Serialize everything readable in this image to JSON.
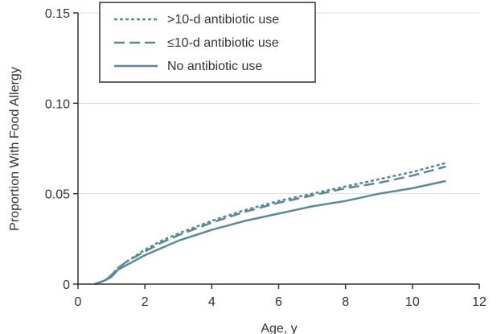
{
  "chart_data": {
    "type": "line",
    "title": "",
    "xlabel": "Age, y",
    "ylabel": "Proportion With Food Allergy",
    "xlim": [
      0,
      12
    ],
    "ylim": [
      0,
      0.15
    ],
    "x_ticks": [
      0,
      2,
      4,
      6,
      8,
      10,
      12
    ],
    "y_ticks": [
      0,
      0.05,
      0.1,
      0.15
    ],
    "x_tick_labels": [
      "0",
      "2",
      "4",
      "6",
      "8",
      "10",
      "12"
    ],
    "y_tick_labels": [
      "0",
      "0.05",
      "0.10",
      "0.15"
    ],
    "grid": "horizontal",
    "legend_position": "top-left",
    "series": [
      {
        "name": ">10-d antibiotic use",
        "style": "dotted",
        "color": "#5b8a96",
        "x": [
          0.5,
          0.8,
          1.0,
          1.2,
          1.5,
          2.0,
          2.5,
          3.0,
          4.0,
          5.0,
          6.0,
          7.0,
          8.0,
          9.0,
          10.0,
          11.0
        ],
        "y": [
          0,
          0.002,
          0.005,
          0.009,
          0.013,
          0.019,
          0.024,
          0.028,
          0.035,
          0.041,
          0.046,
          0.05,
          0.054,
          0.058,
          0.062,
          0.067
        ]
      },
      {
        "name": "≤10-d antibiotic use",
        "style": "dashed",
        "color": "#5b8a96",
        "x": [
          0.5,
          0.8,
          1.0,
          1.2,
          1.5,
          2.0,
          2.5,
          3.0,
          4.0,
          5.0,
          6.0,
          7.0,
          8.0,
          9.0,
          10.0,
          11.0
        ],
        "y": [
          0,
          0.002,
          0.005,
          0.009,
          0.013,
          0.018,
          0.023,
          0.027,
          0.034,
          0.04,
          0.045,
          0.049,
          0.053,
          0.056,
          0.06,
          0.065
        ]
      },
      {
        "name": "No antibiotic use",
        "style": "solid",
        "color": "#5b8a96",
        "x": [
          0.5,
          0.8,
          1.0,
          1.2,
          1.5,
          2.0,
          2.5,
          3.0,
          4.0,
          5.0,
          6.0,
          7.0,
          8.0,
          9.0,
          10.0,
          11.0
        ],
        "y": [
          0,
          0.002,
          0.004,
          0.008,
          0.011,
          0.016,
          0.02,
          0.024,
          0.03,
          0.035,
          0.039,
          0.043,
          0.046,
          0.05,
          0.053,
          0.057
        ]
      }
    ]
  }
}
